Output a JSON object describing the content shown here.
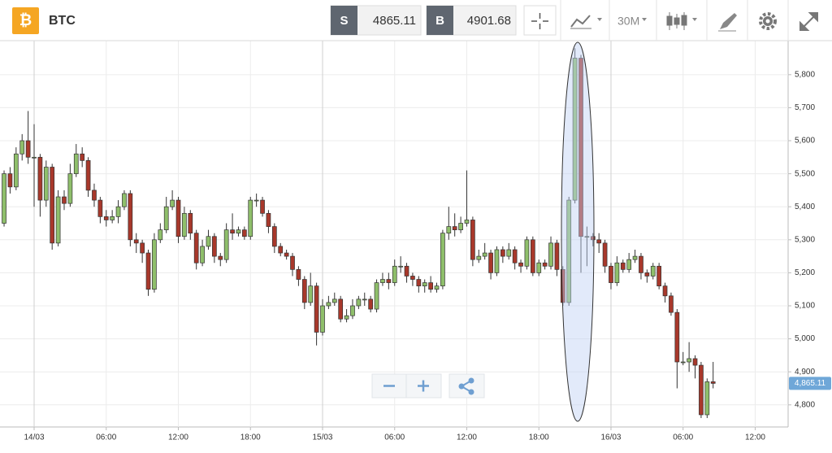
{
  "header": {
    "icon": "₿",
    "symbol": "BTC",
    "sell_label": "S",
    "sell": "4865.11",
    "buy_label": "B",
    "buy": "4901.68",
    "interval": "30M"
  },
  "chart_data": {
    "type": "candlestick",
    "x": [
      -2.5,
      -2,
      -1.5,
      -1,
      -0.5,
      0,
      0.5,
      1,
      1.5,
      2,
      2.5,
      3,
      3.5,
      4,
      4.5,
      5,
      5.5,
      6,
      6.5,
      7,
      7.5,
      8,
      8.5,
      9,
      9.5,
      10,
      10.5,
      11,
      11.5,
      12,
      12.5,
      13,
      13.5,
      14,
      14.5,
      15,
      15.5,
      16,
      16.5,
      17,
      17.5,
      18,
      18.5,
      19,
      19.5,
      20,
      20.5,
      21,
      21.5,
      22,
      22.5,
      23,
      23.5,
      24,
      24.5,
      25,
      25.5,
      26,
      26.5,
      27,
      27.5,
      28,
      28.5,
      29,
      29.5,
      30,
      30.5,
      31,
      31.5,
      32,
      32.5,
      33,
      33.5,
      34,
      34.5,
      35,
      35.5,
      36,
      36.5,
      37,
      37.5,
      38,
      38.5,
      39,
      39.5,
      40,
      40.5,
      41,
      41.5,
      42,
      42.5,
      43,
      43.5,
      44,
      44.5,
      45,
      45.5,
      46,
      46.5,
      47,
      47.5,
      48,
      48.5,
      49,
      49.5,
      50,
      50.5,
      51,
      51.5,
      52,
      52.5,
      53,
      53.5,
      54,
      54.5,
      55,
      55.5,
      56,
      56.5
    ],
    "open": [
      5350,
      5500,
      5460,
      5560,
      5600,
      5550,
      5550,
      5420,
      5520,
      5290,
      5430,
      5410,
      5500,
      5560,
      5540,
      5450,
      5420,
      5370,
      5360,
      5370,
      5400,
      5440,
      5300,
      5290,
      5260,
      5150,
      5300,
      5330,
      5400,
      5420,
      5310,
      5380,
      5320,
      5230,
      5280,
      5310,
      5250,
      5240,
      5330,
      5320,
      5330,
      5310,
      5420,
      5420,
      5380,
      5340,
      5280,
      5260,
      5250,
      5210,
      5180,
      5110,
      5160,
      5020,
      5100,
      5110,
      5120,
      5060,
      5070,
      5100,
      5120,
      5120,
      5090,
      5170,
      5180,
      5170,
      5220,
      5220,
      5190,
      5180,
      5160,
      5170,
      5150,
      5160,
      5320,
      5340,
      5330,
      5350,
      5360,
      5240,
      5250,
      5260,
      5200,
      5270,
      5250,
      5270,
      5230,
      5220,
      5300,
      5200,
      5230,
      5220,
      5290,
      5210,
      5110,
      5420,
      5850,
      5310,
      5310,
      5300,
      5290,
      5220,
      5170,
      5230,
      5210,
      5240,
      5250,
      5200,
      5190,
      5220,
      5160,
      5130,
      5080,
      4930,
      4930,
      4940,
      4920,
      4770,
      4870
    ],
    "high": [
      5510,
      5520,
      5580,
      5620,
      5690,
      5650,
      5560,
      5540,
      5530,
      5450,
      5450,
      5530,
      5590,
      5580,
      5550,
      5470,
      5430,
      5390,
      5390,
      5420,
      5450,
      5450,
      5320,
      5300,
      5270,
      5320,
      5350,
      5430,
      5450,
      5430,
      5400,
      5390,
      5330,
      5300,
      5330,
      5320,
      5260,
      5350,
      5380,
      5340,
      5340,
      5430,
      5440,
      5430,
      5390,
      5350,
      5290,
      5270,
      5260,
      5220,
      5190,
      5200,
      5170,
      5120,
      5130,
      5140,
      5130,
      5090,
      5120,
      5130,
      5140,
      5130,
      5180,
      5200,
      5200,
      5240,
      5250,
      5230,
      5200,
      5190,
      5180,
      5190,
      5170,
      5330,
      5400,
      5380,
      5370,
      5510,
      5370,
      5270,
      5290,
      5270,
      5280,
      5280,
      5290,
      5280,
      5240,
      5310,
      5310,
      5240,
      5240,
      5310,
      5300,
      5220,
      5430,
      5880,
      5860,
      5340,
      5320,
      5320,
      5300,
      5230,
      5250,
      5240,
      5260,
      5270,
      5260,
      5210,
      5230,
      5230,
      5170,
      5140,
      5090,
      4960,
      4990,
      4950,
      4930,
      4880,
      4930
    ],
    "low": [
      5340,
      5440,
      5450,
      5540,
      5530,
      5400,
      5370,
      5400,
      5270,
      5280,
      5390,
      5400,
      5490,
      5520,
      5430,
      5400,
      5350,
      5340,
      5350,
      5350,
      5390,
      5280,
      5260,
      5230,
      5130,
      5140,
      5290,
      5320,
      5390,
      5290,
      5300,
      5300,
      5210,
      5220,
      5270,
      5230,
      5220,
      5230,
      5300,
      5310,
      5300,
      5300,
      5400,
      5370,
      5320,
      5260,
      5250,
      5240,
      5190,
      5160,
      5090,
      5100,
      4980,
      5010,
      5090,
      5100,
      5050,
      5050,
      5060,
      5090,
      5100,
      5080,
      5080,
      5160,
      5150,
      5160,
      5200,
      5170,
      5160,
      5140,
      5140,
      5140,
      5140,
      5150,
      5300,
      5310,
      5320,
      5340,
      5220,
      5230,
      5240,
      5180,
      5190,
      5230,
      5240,
      5210,
      5200,
      5210,
      5190,
      5190,
      5210,
      5210,
      5190,
      5100,
      5100,
      5410,
      5200,
      5220,
      5280,
      5260,
      5200,
      5150,
      5160,
      5200,
      5200,
      5230,
      5180,
      5170,
      5180,
      5150,
      5110,
      5070,
      4850,
      4920,
      4900,
      4880,
      4760,
      4760,
      4850
    ],
    "close": [
      5500,
      5460,
      5560,
      5600,
      5550,
      5550,
      5420,
      5520,
      5290,
      5430,
      5410,
      5500,
      5560,
      5540,
      5450,
      5420,
      5370,
      5360,
      5370,
      5400,
      5440,
      5300,
      5290,
      5260,
      5150,
      5300,
      5330,
      5400,
      5420,
      5310,
      5380,
      5320,
      5230,
      5280,
      5310,
      5250,
      5240,
      5330,
      5320,
      5330,
      5310,
      5420,
      5420,
      5380,
      5340,
      5280,
      5260,
      5250,
      5210,
      5180,
      5110,
      5160,
      5020,
      5100,
      5110,
      5120,
      5060,
      5070,
      5100,
      5120,
      5120,
      5090,
      5170,
      5180,
      5170,
      5220,
      5220,
      5190,
      5180,
      5160,
      5170,
      5150,
      5160,
      5320,
      5340,
      5330,
      5350,
      5360,
      5240,
      5250,
      5260,
      5200,
      5270,
      5250,
      5270,
      5230,
      5220,
      5300,
      5200,
      5230,
      5220,
      5290,
      5210,
      5110,
      5420,
      5850,
      5310,
      5310,
      5300,
      5290,
      5220,
      5170,
      5230,
      5210,
      5240,
      5250,
      5200,
      5190,
      5220,
      5160,
      5130,
      5080,
      4930,
      4930,
      4940,
      4920,
      4770,
      4870,
      4865
    ],
    "up_color": "#8fbf6b",
    "down_color": "#a8382b",
    "xlim": [
      -2.84,
      62.74
    ],
    "xticks": [
      {
        "value": 0,
        "label": "14/03"
      },
      {
        "value": 6,
        "label": "06:00"
      },
      {
        "value": 12,
        "label": "12:00"
      },
      {
        "value": 18,
        "label": "18:00"
      },
      {
        "value": 24,
        "label": "15/03"
      },
      {
        "value": 30,
        "label": "06:00"
      },
      {
        "value": 36,
        "label": "12:00"
      },
      {
        "value": 42,
        "label": "18:00"
      },
      {
        "value": 48,
        "label": "16/03"
      },
      {
        "value": 54,
        "label": "06:00"
      },
      {
        "value": 60,
        "label": "12:00"
      }
    ],
    "ylim": [
      4733,
      5903
    ],
    "yticks": [
      {
        "value": 4800,
        "label": "4,800"
      },
      {
        "value": 4900,
        "label": "4,900"
      },
      {
        "value": 5000,
        "label": "5,000"
      },
      {
        "value": 5100,
        "label": "5,100"
      },
      {
        "value": 5200,
        "label": "5,200"
      },
      {
        "value": 5300,
        "label": "5,300"
      },
      {
        "value": 5400,
        "label": "5,400"
      },
      {
        "value": 5500,
        "label": "5,500"
      },
      {
        "value": 5600,
        "label": "5,600"
      },
      {
        "value": 5700,
        "label": "5,700"
      },
      {
        "value": 5800,
        "label": "5,800"
      }
    ],
    "grid": true,
    "last_value": 4865.11,
    "last_value_label": "4,865.11"
  }
}
